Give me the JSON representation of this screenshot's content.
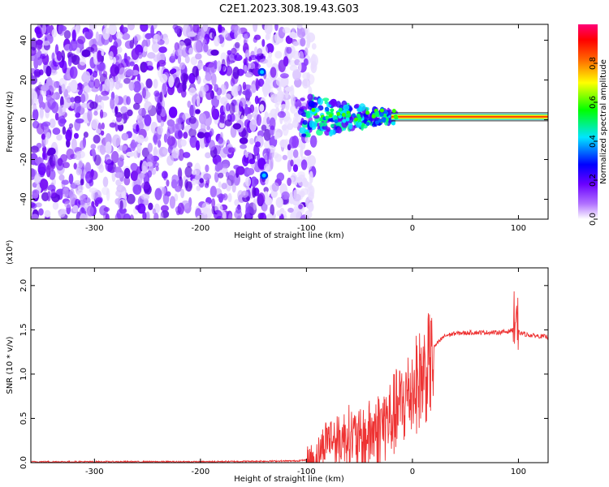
{
  "title": "C2E1.2023.308.19.43.G03",
  "chart_data": [
    {
      "type": "heatmap",
      "xlabel": "Height of straight line (km)",
      "ylabel": "Frequency (Hz)",
      "xlim": [
        -360,
        128
      ],
      "ylim": [
        -50,
        48
      ],
      "x_ticks": [
        -300,
        -200,
        -100,
        0,
        100
      ],
      "y_ticks": [
        -40,
        -20,
        0,
        20,
        40
      ],
      "colorbar": {
        "label": "Normalized spectral amplitude",
        "range": [
          0.0,
          1.0
        ],
        "ticks": [
          0.0,
          0.2,
          0.4,
          0.6,
          0.8
        ],
        "colors": [
          "#ffffff",
          "#7a00ff",
          "#0000ff",
          "#00e5ff",
          "#00ff00",
          "#ffff00",
          "#ff6600",
          "#ff0000",
          "#ff0080"
        ]
      },
      "features": {
        "noise_region_x": [
          -360,
          -100
        ],
        "carrier_x": [
          -100,
          128
        ],
        "carrier_frequency_hz": 1.5,
        "bright_blobs": [
          {
            "x": -142,
            "y": 24
          },
          {
            "x": -140,
            "y": -28
          }
        ]
      }
    },
    {
      "type": "line",
      "xlabel": "Height of straight line (km)",
      "ylabel": "SNR (10 * v/v)",
      "y_multiplier": "(x10⁴)",
      "xlim": [
        -360,
        128
      ],
      "ylim": [
        0.0,
        2.2
      ],
      "x_ticks": [
        -300,
        -200,
        -100,
        0,
        100
      ],
      "y_ticks": [
        "0.0",
        "0.5",
        "1.0",
        "1.5",
        "2.0"
      ],
      "series": [
        {
          "color": "#ee3333",
          "x": [
            -360,
            -300,
            -200,
            -110,
            -100,
            -90,
            -80,
            -70,
            -60,
            -50,
            -40,
            -30,
            -20,
            -10,
            0,
            10,
            20,
            30,
            40,
            60,
            80,
            90,
            95,
            98,
            100,
            110,
            128
          ],
          "y": [
            0.01,
            0.01,
            0.01,
            0.02,
            0.03,
            0.1,
            0.35,
            0.3,
            0.4,
            0.3,
            0.4,
            0.5,
            0.6,
            0.75,
            0.95,
            1.1,
            1.3,
            1.43,
            1.46,
            1.47,
            1.47,
            1.48,
            1.5,
            1.35,
            1.47,
            1.44,
            1.42
          ]
        }
      ]
    }
  ]
}
